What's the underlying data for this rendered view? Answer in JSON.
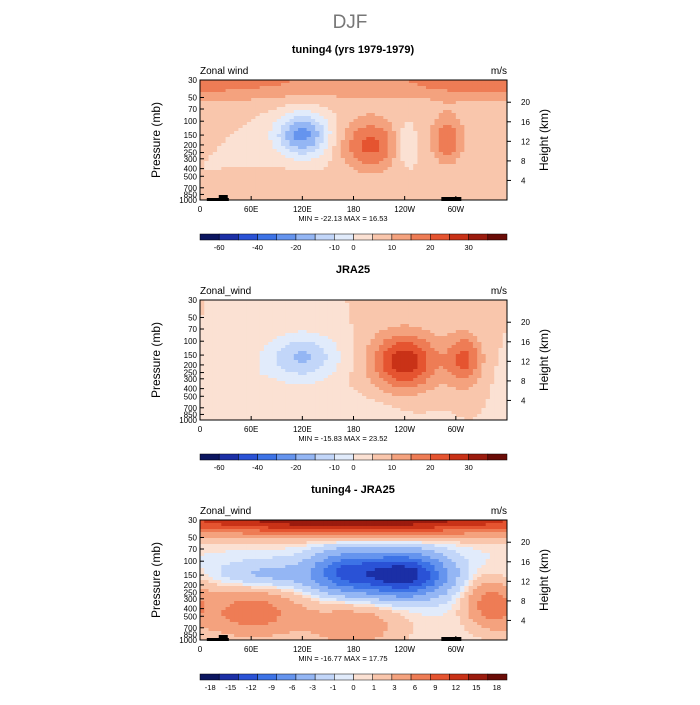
{
  "figure_title": "DJF",
  "colors": {
    "palette_zonal": [
      "#0b1660",
      "#1b2fa6",
      "#2a52d6",
      "#3d73e6",
      "#6594ee",
      "#94b6f4",
      "#c2d6f9",
      "#e1ebfb",
      "#fbe1d3",
      "#f9c6ac",
      "#f4a27e",
      "#ee7c55",
      "#e55430",
      "#c93217",
      "#9b1b0e",
      "#6a0c07"
    ],
    "palette_diff": [
      "#0b1660",
      "#1b2fa6",
      "#2a52d6",
      "#3d73e6",
      "#6594ee",
      "#94b6f4",
      "#c2d6f9",
      "#e1ebfb",
      "#fbe1d3",
      "#f9c6ac",
      "#f4a27e",
      "#ee7c55",
      "#e55430",
      "#c93217",
      "#9b1b0e",
      "#6a0c07"
    ],
    "axis": "#000000",
    "land_mask": "#000000"
  },
  "chart_data": [
    {
      "type": "heatmap",
      "id": "panel-model",
      "title": "tuning4 (yrs 1979-1979)",
      "left_label": "Zonal wind",
      "units": "m/s",
      "ylabel": "Pressure (mb)",
      "ylabel_right": "Height (km)",
      "x_ticks": [
        "0",
        "60E",
        "120E",
        "180",
        "120W",
        "60W"
      ],
      "y_ticks": [
        "30",
        "50",
        "70",
        "100",
        "150",
        "200",
        "250",
        "300",
        "400",
        "500",
        "700",
        "850",
        "1000"
      ],
      "height_ticks": [
        "4",
        "8",
        "12",
        "16",
        "20"
      ],
      "stats": "MIN = -22.13   MAX =  16.53",
      "colorbar_labels": [
        "-60",
        "-40",
        "-20",
        "-10",
        "0",
        "10",
        "20",
        "30"
      ],
      "features": [
        {
          "lon": 200,
          "p": 200,
          "amp": 16.5,
          "slon": 25,
          "sp": 0.55
        },
        {
          "lon": 290,
          "p": 170,
          "amp": 14.5,
          "slon": 14,
          "sp": 0.5
        },
        {
          "lon": 60,
          "p": 30,
          "amp": 9,
          "slon": 170,
          "sp": 0.45
        },
        {
          "lon": 310,
          "p": 30,
          "amp": 6,
          "slon": 90,
          "sp": 0.4
        },
        {
          "lon": 120,
          "p": 150,
          "amp": -22,
          "slon": 22,
          "sp": 0.45
        },
        {
          "lon": 240,
          "p": 200,
          "amp": -8,
          "slon": 9,
          "sp": 0.4
        },
        {
          "lon": 110,
          "p": 800,
          "amp": 4,
          "slon": 20,
          "sp": 0.5
        }
      ]
    },
    {
      "type": "heatmap",
      "id": "panel-reanalysis",
      "title": "JRA25",
      "left_label": "Zonal_wind",
      "units": "m/s",
      "ylabel": "Pressure (mb)",
      "ylabel_right": "Height (km)",
      "x_ticks": [
        "0",
        "60E",
        "120E",
        "180",
        "120W",
        "60W"
      ],
      "y_ticks": [
        "30",
        "50",
        "70",
        "100",
        "150",
        "200",
        "250",
        "300",
        "400",
        "500",
        "700",
        "850",
        "1000"
      ],
      "height_ticks": [
        "4",
        "8",
        "12",
        "16",
        "20"
      ],
      "stats": "MIN = -15.83   MAX =  23.52",
      "colorbar_labels": [
        "-60",
        "-40",
        "-20",
        "-10",
        "0",
        "10",
        "20",
        "30"
      ],
      "features": [
        {
          "lon": 240,
          "p": 180,
          "amp": 23.5,
          "slon": 28,
          "sp": 0.6
        },
        {
          "lon": 310,
          "p": 170,
          "amp": 16,
          "slon": 15,
          "sp": 0.55
        },
        {
          "lon": 120,
          "p": 160,
          "amp": -15.8,
          "slon": 30,
          "sp": 0.5
        },
        {
          "lon": 40,
          "p": 300,
          "amp": -4,
          "slon": 30,
          "sp": 0.5
        },
        {
          "lon": 150,
          "p": 700,
          "amp": -3,
          "slon": 70,
          "sp": 0.3
        }
      ]
    },
    {
      "type": "heatmap",
      "id": "panel-difference",
      "title": "tuning4 - JRA25",
      "left_label": "Zonal_wind",
      "units": "m/s",
      "ylabel": "Pressure (mb)",
      "ylabel_right": "Height (km)",
      "x_ticks": [
        "0",
        "60E",
        "120E",
        "180",
        "120W",
        "60W"
      ],
      "y_ticks": [
        "30",
        "50",
        "70",
        "100",
        "150",
        "200",
        "250",
        "300",
        "400",
        "500",
        "700",
        "850",
        "1000"
      ],
      "height_ticks": [
        "4",
        "8",
        "12",
        "16",
        "20"
      ],
      "stats": "MIN = -16.77   MAX =  17.75",
      "colorbar_labels": [
        "-18",
        "-15",
        "-12",
        "-9",
        "-6",
        "-3",
        "-1",
        "0",
        "1",
        "3",
        "6",
        "9",
        "12",
        "15",
        "18"
      ],
      "features": [
        {
          "lon": 180,
          "p": 30,
          "amp": 17.7,
          "slon": 200,
          "sp": 0.3
        },
        {
          "lon": 240,
          "p": 150,
          "amp": -16.8,
          "slon": 35,
          "sp": 0.45
        },
        {
          "lon": 170,
          "p": 140,
          "amp": -11,
          "slon": 30,
          "sp": 0.45
        },
        {
          "lon": 60,
          "p": 450,
          "amp": 8,
          "slon": 40,
          "sp": 0.5
        },
        {
          "lon": 180,
          "p": 650,
          "amp": 5,
          "slon": 40,
          "sp": 0.5
        },
        {
          "lon": 340,
          "p": 350,
          "amp": 7,
          "slon": 20,
          "sp": 0.5
        },
        {
          "lon": 80,
          "p": 150,
          "amp": -4,
          "slon": 40,
          "sp": 0.3
        }
      ]
    }
  ]
}
